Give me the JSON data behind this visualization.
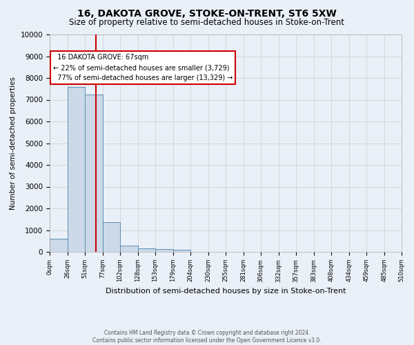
{
  "title": "16, DAKOTA GROVE, STOKE-ON-TRENT, ST6 5XW",
  "subtitle": "Size of property relative to semi-detached houses in Stoke-on-Trent",
  "xlabel": "Distribution of semi-detached houses by size in Stoke-on-Trent",
  "ylabel": "Number of semi-detached properties",
  "footnote": "Contains HM Land Registry data © Crown copyright and database right 2024.\nContains public sector information licensed under the Open Government Licence v3.0.",
  "bar_edges": [
    0,
    26,
    51,
    77,
    102,
    128,
    153,
    179,
    204,
    230,
    255,
    281,
    306,
    332,
    357,
    383,
    408,
    434,
    459,
    485,
    510
  ],
  "bar_heights": [
    600,
    7600,
    7250,
    1350,
    300,
    170,
    140,
    90,
    0,
    0,
    0,
    0,
    0,
    0,
    0,
    0,
    0,
    0,
    0,
    0
  ],
  "bar_color": "#ccd9e8",
  "bar_edge_color": "#5b8db0",
  "property_size": 67,
  "property_label": "16 DAKOTA GROVE: 67sqm",
  "pct_smaller": 22,
  "count_smaller": 3729,
  "pct_larger": 77,
  "count_larger": 13329,
  "annotation_box_color": "#ffffff",
  "annotation_box_edge_color": "#cc0000",
  "vline_color": "#cc0000",
  "ylim": [
    0,
    10000
  ],
  "yticks": [
    0,
    1000,
    2000,
    3000,
    4000,
    5000,
    6000,
    7000,
    8000,
    9000,
    10000
  ],
  "grid_color": "#cccccc",
  "bg_color": "#eaf0f8",
  "title_fontsize": 10,
  "subtitle_fontsize": 8.5
}
